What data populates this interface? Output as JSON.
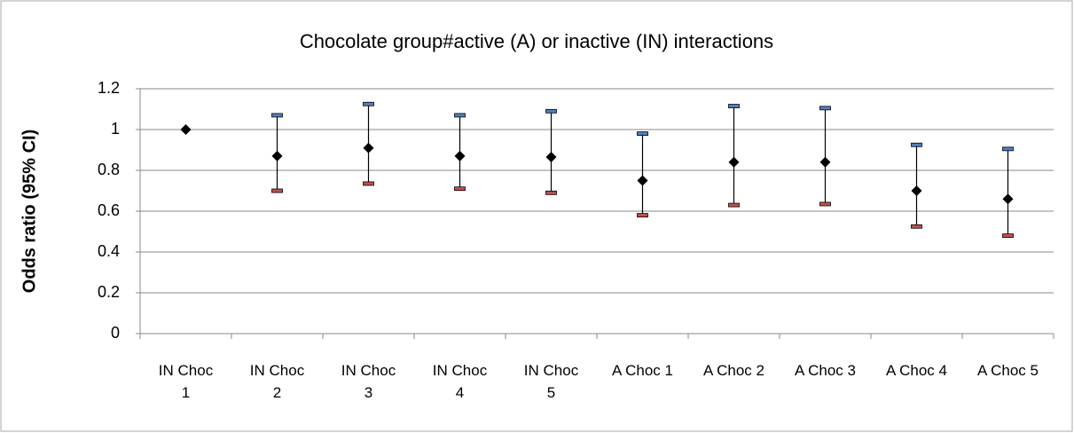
{
  "chart_data": {
    "type": "errorbar",
    "title": "Chocolate group#active (A) or inactive (IN) interactions",
    "y_label": "Odds ratio (95% CI)",
    "categories": [
      "IN Choc 1",
      "IN Choc 2",
      "IN Choc 3",
      "IN Choc 4",
      "IN Choc 5",
      "A Choc 1",
      "A Choc 2",
      "A Choc 3",
      "A Choc 4",
      "A Choc 5"
    ],
    "values": [
      1,
      0.87,
      0.91,
      0.87,
      0.865,
      0.75,
      0.84,
      0.84,
      0.7,
      0.66
    ],
    "lower": [
      null,
      0.7,
      0.735,
      0.71,
      0.69,
      0.58,
      0.63,
      0.635,
      0.525,
      0.48
    ],
    "upper": [
      null,
      1.07,
      1.125,
      1.07,
      1.09,
      0.98,
      1.115,
      1.105,
      0.925,
      0.905
    ],
    "color": "#000000",
    "upper_color": "#4f81bd",
    "lower_color": "#c0504d",
    "ylim": [
      0,
      1.2
    ],
    "yticks": [
      0,
      0.2,
      0.4,
      0.6,
      0.8,
      1,
      1.2
    ],
    "grid": true
  }
}
